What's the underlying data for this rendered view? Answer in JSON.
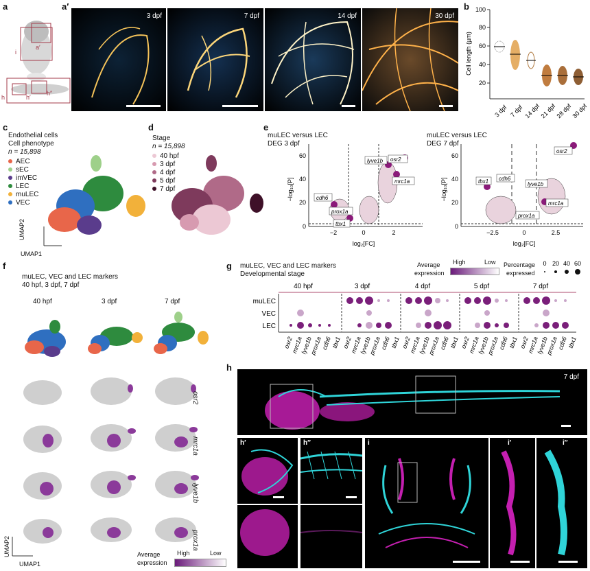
{
  "labels": {
    "a": "a",
    "a_prime": "a′",
    "b": "b",
    "c": "c",
    "d": "d",
    "e": "e",
    "f": "f",
    "g": "g",
    "h": "h",
    "i": "i",
    "h_prime": "h′",
    "h_dprime": "h″",
    "i_prime": "i′",
    "i_dprime": "i″",
    "a_box_small": "a′",
    "a_box_i": "i",
    "a_box_h": "h",
    "a_box_hp": "h′",
    "a_box_hpp": "h″"
  },
  "panel_a_prime": {
    "stages": [
      "3 dpf",
      "7 dpf",
      "14 dpf",
      "30 dpf"
    ]
  },
  "panel_b": {
    "ylabel": "Cell length (µm)",
    "yticks": [
      "20",
      "40",
      "60",
      "80",
      "100"
    ],
    "categories": [
      "3 dpf",
      "7 dpf",
      "14 dpf",
      "21 dpf",
      "28 dpf",
      "30 dpf"
    ]
  },
  "panel_c": {
    "title1": "Endothelial cells",
    "title2": "Cell phenotype",
    "n": "n = 15,898",
    "legend": [
      {
        "label": "AEC",
        "color": "#e8664a"
      },
      {
        "label": "sEC",
        "color": "#9ed08a"
      },
      {
        "label": "imVEC",
        "color": "#5a3c8c"
      },
      {
        "label": "LEC",
        "color": "#2e8b3e"
      },
      {
        "label": "muLEC",
        "color": "#f2b13a"
      },
      {
        "label": "VEC",
        "color": "#2f6fc0"
      }
    ],
    "xaxis": "UMAP1",
    "yaxis": "UMAP2"
  },
  "panel_d": {
    "title": "Stage",
    "n": "n = 15,898",
    "legend": [
      {
        "label": "40 hpf",
        "color": "#ecc8d4"
      },
      {
        "label": "3 dpf",
        "color": "#d79ab0"
      },
      {
        "label": "4 dpf",
        "color": "#b06a88"
      },
      {
        "label": "5 dpf",
        "color": "#7e3a5c"
      },
      {
        "label": "7 dpf",
        "color": "#3e1028"
      }
    ]
  },
  "panel_e": {
    "left_title1": "muLEC versus LEC",
    "left_title2": "DEG 3 dpf",
    "right_title1": "muLEC versus LEC",
    "right_title2": "DEG 7 dpf",
    "ylabel": "−log₁₀[P]",
    "xlabel": "log₂[FC]",
    "left_yticks": [
      "0",
      "20",
      "40",
      "60"
    ],
    "left_xticks": [
      "−2",
      "0",
      "2"
    ],
    "right_yticks": [
      "0",
      "20",
      "40",
      "60"
    ],
    "right_xticks": [
      "−2.5",
      "0",
      "2.5"
    ],
    "left_genes": [
      "osr2",
      "lyve1b",
      "mrc1a",
      "cdh6",
      "prox1a",
      "tbx1"
    ],
    "right_genes": [
      "osr2",
      "tbx1",
      "cdh6",
      "lyve1b",
      "mrc1a",
      "prox1a"
    ]
  },
  "panel_f": {
    "title1": "muLEC, VEC and LEC markers",
    "title2": "40 hpf, 3 dpf, 7 dpf",
    "columns": [
      "40 hpf",
      "3 dpf",
      "7 dpf"
    ],
    "rows": [
      "osr2",
      "mrc1a",
      "lyve1b",
      "prox1a"
    ],
    "legend_title1": "Average",
    "legend_title2": "expression",
    "legend_high": "High",
    "legend_low": "Low",
    "xaxis": "UMAP1",
    "yaxis": "UMAP2"
  },
  "panel_g": {
    "title1": "muLEC, VEC and LEC markers",
    "title2": "Developmental stage",
    "stages": [
      "40 hpf",
      "3 dpf",
      "4 dpf",
      "5 dpf",
      "7 dpf"
    ],
    "rows": [
      "muLEC",
      "VEC",
      "LEC"
    ],
    "genes": [
      "osr2",
      "mrc1a",
      "lyve1b",
      "prox1a",
      "cdh6",
      "tbx1"
    ],
    "legend_avg1": "Average",
    "legend_avg2": "expression",
    "legend_high": "High",
    "legend_low": "Low",
    "legend_pct1": "Percentage",
    "legend_pct2": "expressed",
    "pct_ticks": [
      "0",
      "20",
      "40",
      "60"
    ]
  },
  "panel_h": {
    "stage": "7 dpf"
  }
}
